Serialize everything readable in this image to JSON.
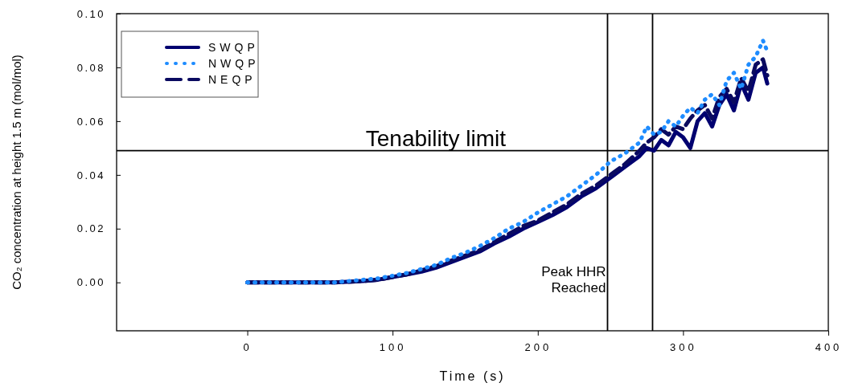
{
  "chart_data": {
    "type": "line",
    "xlabel": "Time (s)",
    "ylabel": "CO₂ concentration at height 1.5 m (mol/mol)",
    "xlim": [
      -90,
      400
    ],
    "ylim": [
      -0.018,
      0.1
    ],
    "xticks": [
      0,
      100,
      200,
      300,
      400
    ],
    "yticks": [
      {
        "value": 0,
        "label": "0.00"
      },
      0.02,
      0.04,
      0.06,
      0.08,
      {
        "value": 0.1,
        "label": "0.10"
      }
    ],
    "grid": false,
    "legend": "top left",
    "marker": "none",
    "x": [
      0,
      20,
      40,
      60,
      80,
      90,
      100,
      110,
      120,
      130,
      140,
      150,
      160,
      170,
      180,
      190,
      200,
      210,
      220,
      230,
      240,
      250,
      260,
      270,
      275,
      280,
      285,
      290,
      295,
      300,
      305,
      310,
      315,
      320,
      325,
      330,
      335,
      340,
      345,
      350,
      355,
      358
    ],
    "series": [
      {
        "name": "SWQP",
        "color": "#000070",
        "line_style": "solid",
        "values": [
          0,
          0,
          0,
          0,
          0.0005,
          0.001,
          0.002,
          0.003,
          0.004,
          0.0055,
          0.0075,
          0.0095,
          0.0115,
          0.0145,
          0.017,
          0.02,
          0.0225,
          0.025,
          0.028,
          0.032,
          0.035,
          0.039,
          0.043,
          0.047,
          0.05,
          0.049,
          0.053,
          0.051,
          0.056,
          0.054,
          0.05,
          0.06,
          0.063,
          0.058,
          0.066,
          0.07,
          0.064,
          0.074,
          0.068,
          0.078,
          0.08,
          0.074
        ]
      },
      {
        "name": "NWQP",
        "color": "#1e8cff",
        "line_style": "dotted",
        "values": [
          0,
          0,
          0,
          0,
          0.001,
          0.0015,
          0.0025,
          0.0035,
          0.005,
          0.0065,
          0.009,
          0.011,
          0.0135,
          0.0165,
          0.02,
          0.0225,
          0.026,
          0.029,
          0.032,
          0.036,
          0.04,
          0.045,
          0.048,
          0.052,
          0.058,
          0.055,
          0.056,
          0.06,
          0.058,
          0.062,
          0.065,
          0.063,
          0.068,
          0.07,
          0.066,
          0.075,
          0.078,
          0.072,
          0.081,
          0.084,
          0.09,
          0.086
        ]
      },
      {
        "name": "NEQP",
        "color": "#0a0a60",
        "line_style": "dashed",
        "values": [
          0,
          0,
          0,
          0,
          0.0005,
          0.001,
          0.002,
          0.003,
          0.0045,
          0.006,
          0.008,
          0.01,
          0.012,
          0.015,
          0.018,
          0.021,
          0.023,
          0.026,
          0.029,
          0.033,
          0.036,
          0.04,
          0.044,
          0.049,
          0.052,
          0.054,
          0.057,
          0.055,
          0.058,
          0.057,
          0.061,
          0.064,
          0.066,
          0.061,
          0.069,
          0.072,
          0.067,
          0.076,
          0.071,
          0.081,
          0.083,
          0.077
        ]
      }
    ],
    "ref_lines": [
      {
        "axis": "y",
        "value": 0.049,
        "label": "Tenability limit"
      },
      {
        "axis": "x",
        "value": 248,
        "label": "Peak HHR Reached"
      },
      {
        "axis": "x",
        "value": 279
      }
    ]
  }
}
